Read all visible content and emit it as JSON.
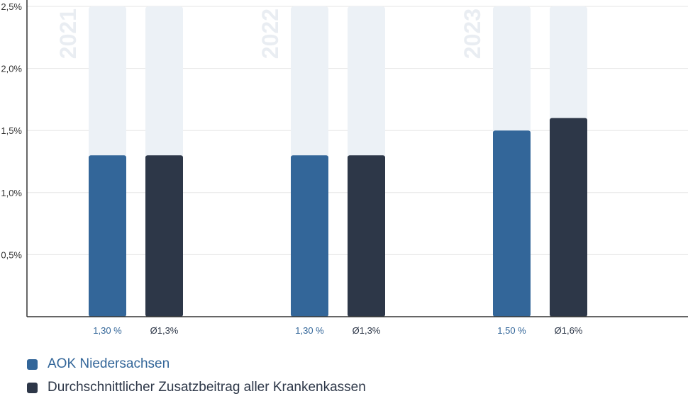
{
  "chart_data": {
    "type": "bar",
    "groups": [
      "2021",
      "2022",
      "2023"
    ],
    "series": [
      {
        "name": "AOK Niedersachsen",
        "values": [
          1.3,
          1.3,
          1.5
        ],
        "labels": [
          "1,30 %",
          "1,30 %",
          "1,50 %"
        ],
        "color": "#336699"
      },
      {
        "name": "Durchschnittlicher Zusatzbeitrag aller Krankenkassen",
        "values": [
          1.3,
          1.3,
          1.6
        ],
        "labels": [
          "Ø1,3%",
          "Ø1,3%",
          "Ø1,6%"
        ],
        "color": "#2d3748"
      }
    ],
    "background_bar_color": "#ecf1f6",
    "yticks": [
      "0,5%",
      "1,0%",
      "1,5%",
      "2,0%",
      "2,5%"
    ],
    "ytick_values": [
      0.5,
      1.0,
      1.5,
      2.0,
      2.5
    ],
    "ylim": [
      0,
      2.5
    ],
    "grid": true,
    "legend_position": "bottom-left"
  }
}
